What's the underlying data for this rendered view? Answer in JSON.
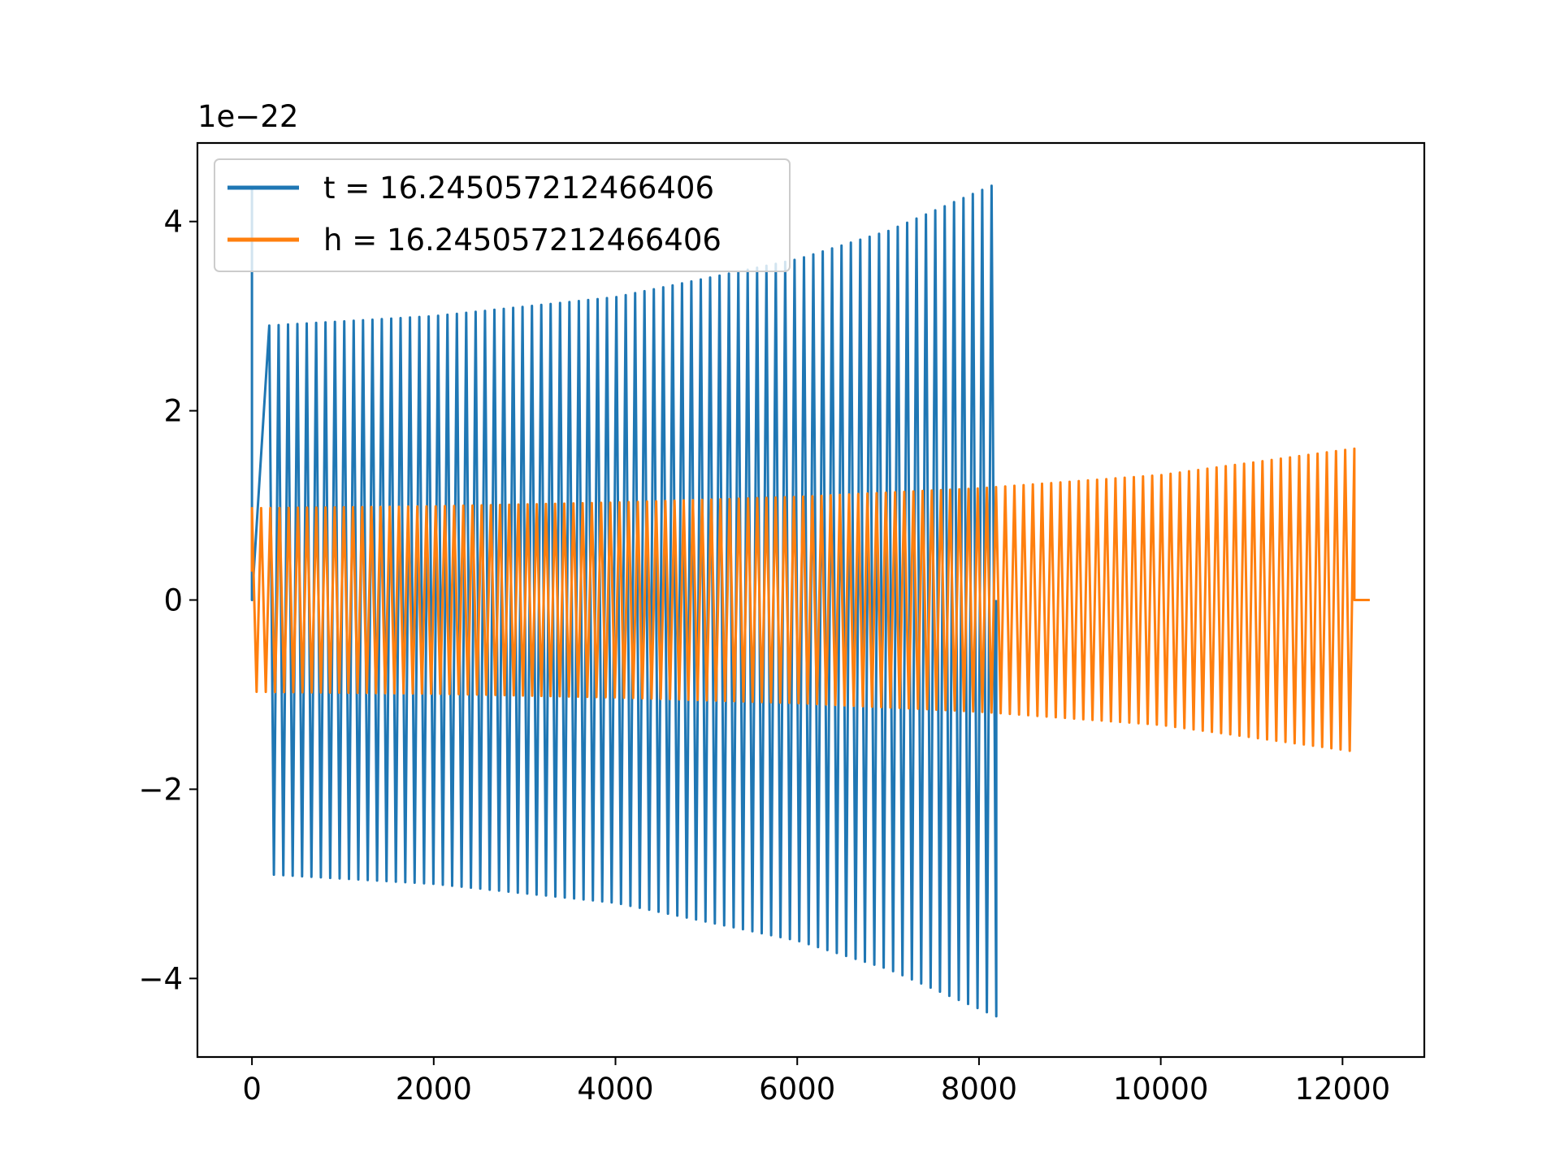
{
  "chart_data": {
    "type": "line",
    "title": "",
    "xlabel": "",
    "ylabel": "",
    "offset_label": "1e−22",
    "xlim": [
      -600,
      12900
    ],
    "ylim": [
      -4.83,
      4.83
    ],
    "x_ticks": [
      0,
      2000,
      4000,
      6000,
      8000,
      10000,
      12000
    ],
    "x_tick_labels": [
      "0",
      "2000",
      "4000",
      "6000",
      "8000",
      "10000",
      "12000"
    ],
    "y_ticks": [
      -4,
      -2,
      0,
      2,
      4
    ],
    "y_tick_labels": [
      "−4",
      "−2",
      "0",
      "2",
      "4"
    ],
    "grid": false,
    "legend": {
      "position": "upper-left",
      "entries": [
        "t = 16.245057212466406",
        "h = 16.245057212466406"
      ]
    },
    "series": [
      {
        "name": "t = 16.245057212466406",
        "color": "#1f77b4",
        "style": "oscillation",
        "x_start": 0,
        "x_end": 8190,
        "initial_spike": {
          "x": 0,
          "value": 4.35
        },
        "envelope": {
          "x": [
            190,
            2000,
            4000,
            6000,
            7000,
            8190
          ],
          "y": [
            2.9,
            3.0,
            3.2,
            3.6,
            3.9,
            4.4
          ]
        },
        "cycles": 155
      },
      {
        "name": "h = 16.245057212466406",
        "color": "#ff7f0e",
        "style": "oscillation",
        "x_start": 0,
        "x_end": 12130,
        "tail_end": 12300,
        "envelope": {
          "x": [
            0,
            2000,
            4000,
            6000,
            8000,
            10000,
            12130
          ],
          "y": [
            0.97,
            0.99,
            1.03,
            1.09,
            1.18,
            1.32,
            1.6
          ]
        },
        "cycles": 240
      }
    ]
  }
}
